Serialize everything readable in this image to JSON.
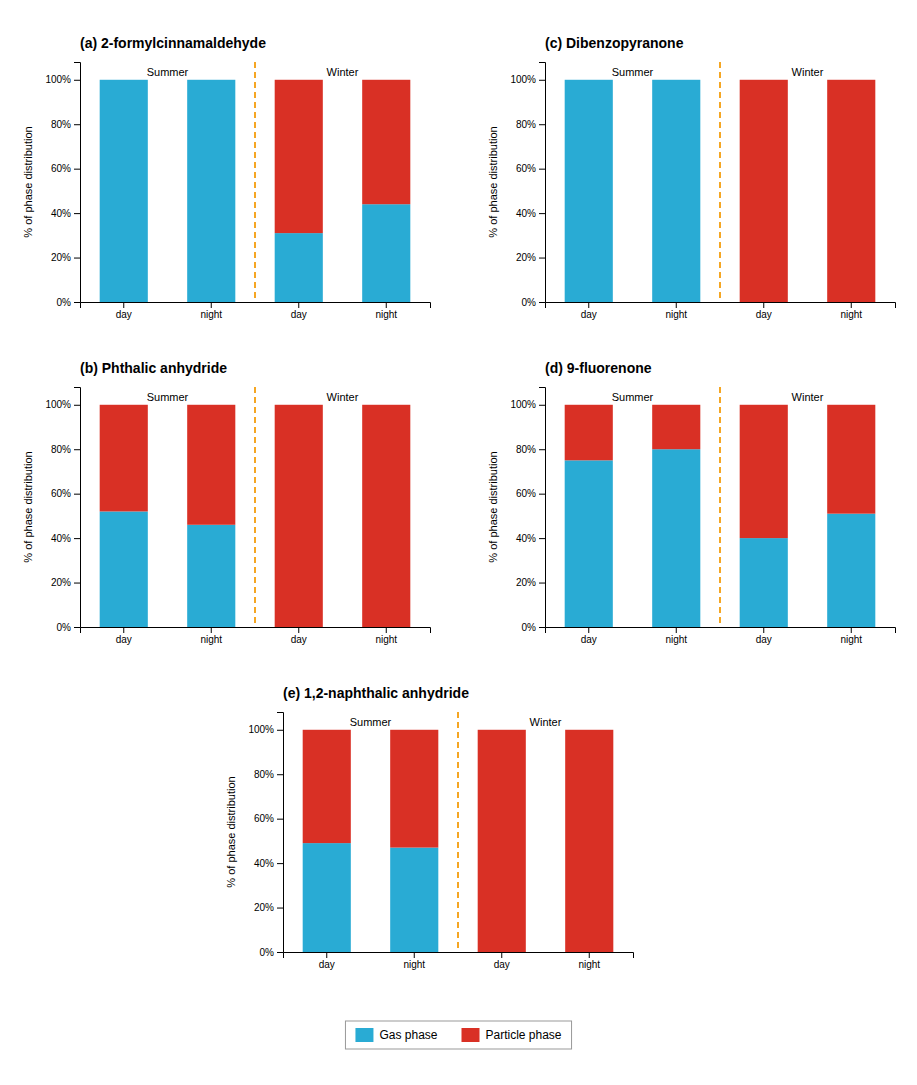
{
  "chart_data": [
    {
      "type": "bar",
      "title": "(a) 2-formylcinnamaldehyde",
      "y_label": "% of phase distribution",
      "categories": [
        "day",
        "night",
        "day",
        "night"
      ],
      "series": [
        {
          "name": "Gas phase",
          "color": "#29ABD4",
          "values": [
            100,
            100,
            31,
            44
          ]
        },
        {
          "name": "Particle phase",
          "color": "#D93025",
          "values": [
            0,
            0,
            69,
            56
          ]
        }
      ],
      "stacked": true,
      "grid": false,
      "legend": "bottom",
      "annotations": [
        "Summer",
        "Winter"
      ],
      "ylim": [
        0,
        108
      ],
      "yticks": [
        {
          "value": 0,
          "label": "0%"
        },
        {
          "value": 20,
          "label": "20%"
        },
        {
          "value": 40,
          "label": "40%"
        },
        {
          "value": 60,
          "label": "60%"
        },
        {
          "value": 80,
          "label": "80%"
        },
        {
          "value": 100,
          "label": "100%"
        }
      ]
    },
    {
      "type": "bar",
      "title": "(b) Phthalic anhydride",
      "y_label": "% of phase distribution",
      "categories": [
        "day",
        "night",
        "day",
        "night"
      ],
      "series": [
        {
          "name": "Gas phase",
          "color": "#29ABD4",
          "values": [
            52,
            46,
            0,
            0
          ]
        },
        {
          "name": "Particle phase",
          "color": "#D93025",
          "values": [
            48,
            54,
            100,
            100
          ]
        }
      ],
      "stacked": true,
      "grid": false,
      "annotations": [
        "Summer",
        "Winter"
      ],
      "ylim": [
        0,
        108
      ],
      "yticks": [
        {
          "value": 0,
          "label": "0%"
        },
        {
          "value": 20,
          "label": "20%"
        },
        {
          "value": 40,
          "label": "40%"
        },
        {
          "value": 60,
          "label": "60%"
        },
        {
          "value": 80,
          "label": "80%"
        },
        {
          "value": 100,
          "label": "100%"
        }
      ]
    },
    {
      "type": "bar",
      "title": "(c) Dibenzopyranone",
      "y_label": "% of phase distribution",
      "categories": [
        "day",
        "night",
        "day",
        "night"
      ],
      "series": [
        {
          "name": "Gas phase",
          "color": "#29ABD4",
          "values": [
            100,
            100,
            0,
            0
          ]
        },
        {
          "name": "Particle phase",
          "color": "#D93025",
          "values": [
            0,
            0,
            100,
            100
          ]
        }
      ],
      "stacked": true,
      "grid": false,
      "annotations": [
        "Summer",
        "Winter"
      ],
      "ylim": [
        0,
        108
      ],
      "yticks": [
        {
          "value": 0,
          "label": "0%"
        },
        {
          "value": 20,
          "label": "20%"
        },
        {
          "value": 40,
          "label": "40%"
        },
        {
          "value": 60,
          "label": "60%"
        },
        {
          "value": 80,
          "label": "80%"
        },
        {
          "value": 100,
          "label": "100%"
        }
      ]
    },
    {
      "type": "bar",
      "title": "(d) 9-fluorenone",
      "y_label": "% of phase distribution",
      "categories": [
        "day",
        "night",
        "day",
        "night"
      ],
      "series": [
        {
          "name": "Gas phase",
          "color": "#29ABD4",
          "values": [
            75,
            80,
            40,
            51
          ]
        },
        {
          "name": "Particle phase",
          "color": "#D93025",
          "values": [
            25,
            20,
            60,
            49
          ]
        }
      ],
      "stacked": true,
      "grid": false,
      "annotations": [
        "Summer",
        "Winter"
      ],
      "ylim": [
        0,
        108
      ],
      "yticks": [
        {
          "value": 0,
          "label": "0%"
        },
        {
          "value": 20,
          "label": "20%"
        },
        {
          "value": 40,
          "label": "40%"
        },
        {
          "value": 60,
          "label": "60%"
        },
        {
          "value": 80,
          "label": "80%"
        },
        {
          "value": 100,
          "label": "100%"
        }
      ]
    },
    {
      "type": "bar",
      "title": "(e) 1,2-naphthalic anhydride",
      "y_label": "% of phase distribution",
      "categories": [
        "day",
        "night",
        "day",
        "night"
      ],
      "series": [
        {
          "name": "Gas phase",
          "color": "#29ABD4",
          "values": [
            49,
            47,
            0,
            0
          ]
        },
        {
          "name": "Particle phase",
          "color": "#D93025",
          "values": [
            51,
            53,
            100,
            100
          ]
        }
      ],
      "stacked": true,
      "grid": false,
      "annotations": [
        "Summer",
        "Winter"
      ],
      "ylim": [
        0,
        108
      ],
      "yticks": [
        {
          "value": 0,
          "label": "0%"
        },
        {
          "value": 20,
          "label": "20%"
        },
        {
          "value": 40,
          "label": "40%"
        },
        {
          "value": 60,
          "label": "60%"
        },
        {
          "value": 80,
          "label": "80%"
        },
        {
          "value": 100,
          "label": "100%"
        }
      ]
    }
  ]
}
